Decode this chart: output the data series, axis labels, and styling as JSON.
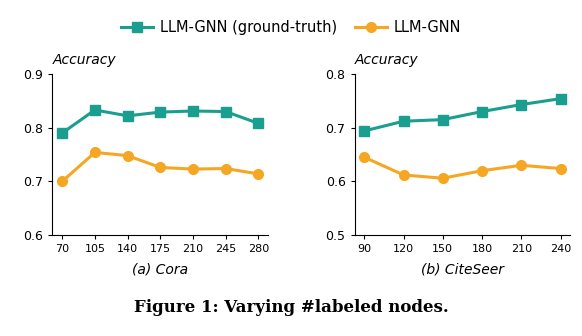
{
  "cora": {
    "x": [
      70,
      105,
      140,
      175,
      210,
      245,
      280
    ],
    "ground_truth": [
      0.79,
      0.833,
      0.822,
      0.829,
      0.831,
      0.83,
      0.808
    ],
    "llm_gnn": [
      0.7,
      0.754,
      0.748,
      0.726,
      0.723,
      0.724,
      0.714
    ],
    "ylim": [
      0.6,
      0.9
    ],
    "yticks": [
      0.6,
      0.7,
      0.8,
      0.9
    ],
    "xlabel_label": "(a) Cora",
    "ylabel_label": "Accuracy"
  },
  "citeseer": {
    "x": [
      90,
      120,
      150,
      180,
      210,
      240
    ],
    "ground_truth": [
      0.694,
      0.712,
      0.715,
      0.73,
      0.743,
      0.754
    ],
    "llm_gnn": [
      0.645,
      0.612,
      0.606,
      0.62,
      0.63,
      0.624
    ],
    "ylim": [
      0.5,
      0.8
    ],
    "yticks": [
      0.5,
      0.6,
      0.7,
      0.8
    ],
    "xlabel_label": "(b) CiteSeer",
    "ylabel_label": "Accuracy"
  },
  "color_gt": "#1a9e8f",
  "color_llm": "#f5a623",
  "legend_gt": "LLM-GNN (ground-truth)",
  "legend_llm": "LLM-GNN",
  "figure_title": "Figure 1: Varying #labeled nodes.",
  "background_color": "#ffffff"
}
